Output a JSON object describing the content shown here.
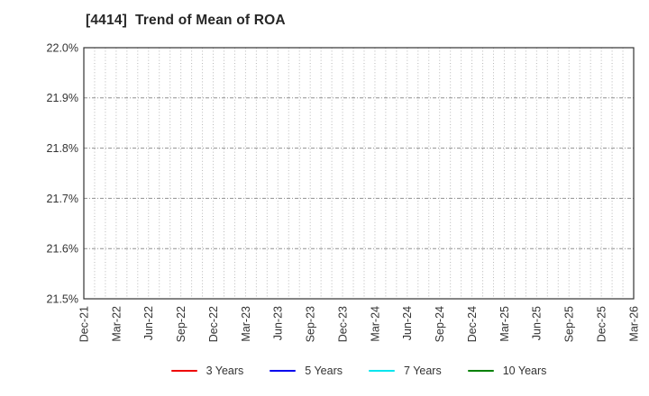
{
  "header": {
    "title": "[4414]  Trend of Mean of ROA"
  },
  "chart_data": {
    "type": "line",
    "title": "[4414]  Trend of Mean of ROA",
    "x_tick_labels": [
      "Dec-21",
      "Mar-22",
      "Jun-22",
      "Sep-22",
      "Dec-22",
      "Mar-23",
      "Jun-23",
      "Sep-23",
      "Dec-23",
      "Mar-24",
      "Jun-24",
      "Sep-24",
      "Dec-24",
      "Mar-25",
      "Jun-25",
      "Sep-25",
      "Dec-25",
      "Mar-26"
    ],
    "months_per_labeled_tick": 3,
    "ylim": [
      21.5,
      22.0
    ],
    "y_tick_values": [
      21.5,
      21.6,
      21.7,
      21.8,
      21.9,
      22.0
    ],
    "y_tick_labels": [
      "21.5%",
      "21.6%",
      "21.7%",
      "21.8%",
      "21.9%",
      "22.0%"
    ],
    "grid": true,
    "plot_background": "#ffffff",
    "border_color": "#333333",
    "grid_v_color": "#b8b8b8",
    "grid_h_color": "#909090",
    "tick_label_color": "#333333",
    "legend_position": "bottom-center",
    "series": [
      {
        "name": "3 Years",
        "color": "#ee0000",
        "values": []
      },
      {
        "name": "5 Years",
        "color": "#0000ee",
        "values": []
      },
      {
        "name": "7 Years",
        "color": "#00e5ee",
        "values": []
      },
      {
        "name": "10 Years",
        "color": "#008000",
        "values": []
      }
    ]
  }
}
